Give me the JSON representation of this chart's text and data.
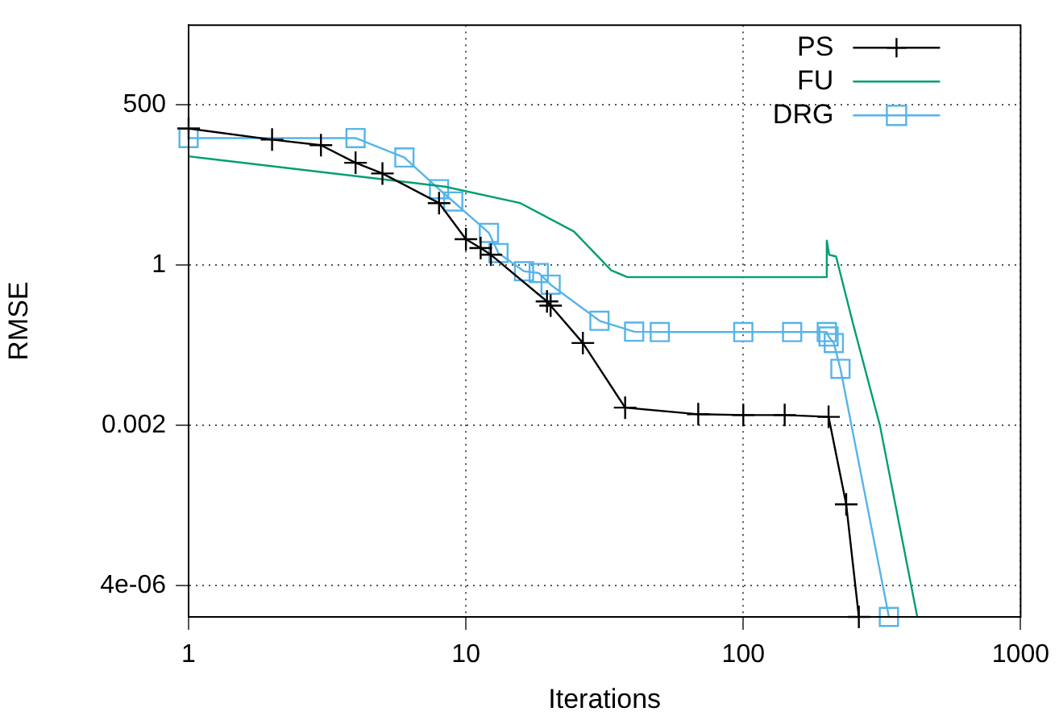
{
  "chart_data": {
    "type": "line",
    "xlabel": "Iterations",
    "ylabel": "RMSE",
    "log": "xy",
    "grid": true,
    "legend": "top right",
    "xlim": [
      1,
      1000
    ],
    "xticks": [
      1,
      10,
      100,
      1000
    ],
    "ylim": [
      1.2e-06,
      11000
    ],
    "yticks": [
      {
        "value": 4e-06,
        "label": "4e-06"
      },
      0.002,
      1,
      500
    ],
    "series": [
      {
        "name": "PS",
        "color": "#000000",
        "marker": "cross",
        "x": [
          1,
          2,
          3,
          4,
          5,
          8,
          10,
          11.3,
          12.3,
          19.6,
          20.2,
          26.4,
          37.5,
          68.8,
          100,
          141,
          203,
          235,
          261
        ],
        "values": [
          200,
          130,
          105,
          53,
          35,
          11.1,
          2.74,
          1.94,
          1.5,
          0.246,
          0.209,
          0.049,
          0.004,
          0.0031,
          0.003,
          0.003,
          0.0028,
          9.4e-05,
          1.2e-06
        ]
      },
      {
        "name": "FU",
        "color": "#009e73",
        "marker": "none",
        "x": [
          1,
          8.4,
          15.7,
          24.5,
          33.4,
          38.2,
          200,
          200,
          204,
          216,
          248,
          311,
          424
        ],
        "values": [
          68,
          21,
          11.1,
          3.7,
          0.82,
          0.63,
          0.63,
          2.6,
          1.5,
          1.4,
          0.109,
          0.002,
          1.2e-06
        ]
      },
      {
        "name": "DRG",
        "color": "#56b4e9",
        "marker": "square",
        "x": [
          1,
          4,
          6,
          8,
          9,
          12.1,
          13.1,
          16.2,
          18.3,
          20.2,
          30.3,
          40.4,
          50,
          100,
          150,
          200,
          203,
          212,
          224,
          335
        ],
        "values": [
          138,
          138,
          65,
          19,
          11.8,
          3.5,
          1.6,
          0.79,
          0.74,
          0.47,
          0.116,
          0.076,
          0.075,
          0.075,
          0.075,
          0.075,
          0.063,
          0.049,
          0.018,
          1.2e-06
        ]
      }
    ]
  }
}
